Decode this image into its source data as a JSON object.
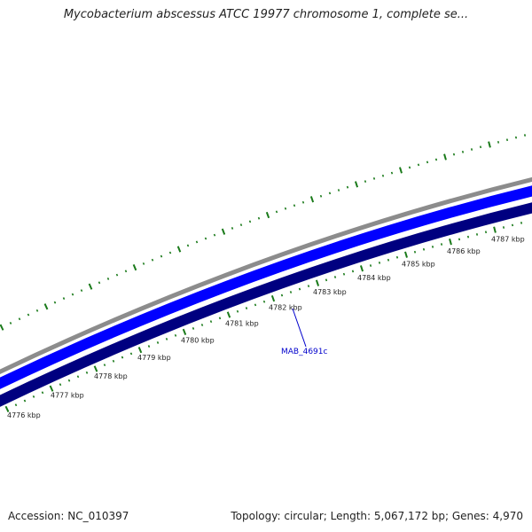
{
  "title": "Mycobacterium abscessus ATCC 19977 chromosome 1, complete se...",
  "accession": "Accession: NC_010397",
  "summary": "Topology: circular; Length: 5,067,172 bp; Genes: 4,970",
  "colors": {
    "outer_ring": "#8c8c8c",
    "forward_genes": "#0000ff",
    "reverse_genes": "#000080",
    "ticks": "#1a7a1a",
    "gene_label": "#0000cc"
  },
  "scale": {
    "unit": "kbp",
    "labels": [
      "4776 kbp",
      "4777 kbp",
      "4778 kbp",
      "4779 kbp",
      "4780 kbp",
      "4781 kbp",
      "4782 kbp",
      "4783 kbp",
      "4784 kbp",
      "4785 kbp",
      "4786 kbp",
      "4787 kbp"
    ]
  },
  "gene": {
    "name": "MAB_4691c"
  }
}
